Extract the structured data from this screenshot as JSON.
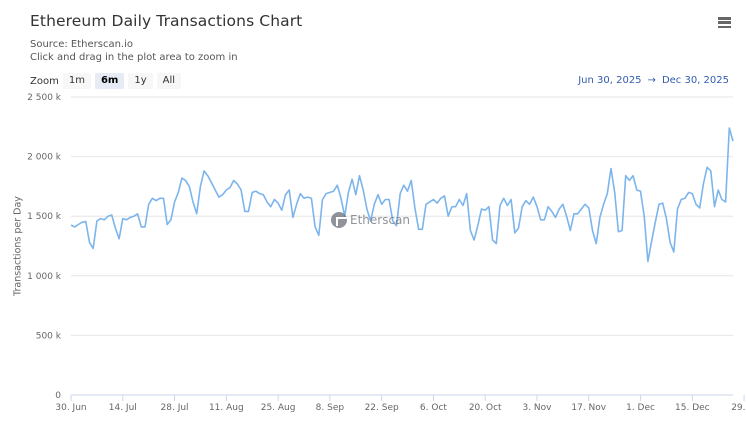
{
  "header": {
    "title": "Ethereum Daily Transactions Chart",
    "source": "Source: Etherscan.io",
    "hint": "Click and drag in the plot area to zoom in",
    "menu_icon": "hamburger-menu-icon"
  },
  "zoom": {
    "label": "Zoom",
    "buttons": [
      {
        "label": "1m",
        "active": false
      },
      {
        "label": "6m",
        "active": true
      },
      {
        "label": "1y",
        "active": false
      },
      {
        "label": "All",
        "active": false
      }
    ]
  },
  "range": {
    "from": "Jun 30, 2025",
    "arrow": "→",
    "to": "Dec 30, 2025"
  },
  "watermark": {
    "text": "Etherscan"
  },
  "colors": {
    "line": "#7cb5ec",
    "grid": "#e6e6e6",
    "axis": "#ccd6eb",
    "range_text": "#335cad"
  },
  "chart_data": {
    "type": "line",
    "title": "Ethereum Daily Transactions Chart",
    "subtitle": "Source: Etherscan.io",
    "xlabel": "",
    "ylabel": "Transactions per Day",
    "ylim": [
      0,
      2500000
    ],
    "y_ticks": [
      "0",
      "500 k",
      "1 000 k",
      "1 500 k",
      "2 000 k",
      "2 500 k"
    ],
    "y_tick_values": [
      0,
      500000,
      1000000,
      1500000,
      2000000,
      2500000
    ],
    "x_ticks": [
      "30. Jun",
      "14. Jul",
      "28. Jul",
      "11. Aug",
      "25. Aug",
      "8. Sep",
      "22. Sep",
      "6. Oct",
      "20. Oct",
      "3. Nov",
      "17. Nov",
      "1. Dec",
      "15. Dec",
      "29. ..."
    ],
    "x_start": "2025-06-30",
    "x_end": "2025-12-30",
    "grid": true,
    "legend": false,
    "series": [
      {
        "name": "Transactions per Day",
        "unit": "k",
        "values": [
          1425,
          1410,
          1430,
          1450,
          1455,
          1280,
          1230,
          1460,
          1480,
          1470,
          1500,
          1510,
          1400,
          1310,
          1480,
          1470,
          1490,
          1500,
          1520,
          1410,
          1410,
          1600,
          1650,
          1630,
          1650,
          1650,
          1430,
          1470,
          1620,
          1700,
          1820,
          1800,
          1750,
          1620,
          1520,
          1750,
          1880,
          1840,
          1780,
          1720,
          1660,
          1680,
          1720,
          1740,
          1800,
          1770,
          1720,
          1540,
          1540,
          1700,
          1710,
          1690,
          1680,
          1620,
          1580,
          1640,
          1610,
          1550,
          1680,
          1720,
          1490,
          1600,
          1690,
          1650,
          1660,
          1650,
          1410,
          1340,
          1640,
          1690,
          1700,
          1710,
          1760,
          1650,
          1500,
          1700,
          1810,
          1680,
          1840,
          1720,
          1560,
          1460,
          1600,
          1680,
          1600,
          1640,
          1640,
          1460,
          1420,
          1690,
          1760,
          1710,
          1800,
          1570,
          1390,
          1390,
          1600,
          1620,
          1640,
          1610,
          1650,
          1670,
          1500,
          1580,
          1580,
          1640,
          1590,
          1690,
          1380,
          1300,
          1420,
          1560,
          1550,
          1580,
          1300,
          1270,
          1590,
          1650,
          1590,
          1640,
          1360,
          1400,
          1580,
          1630,
          1600,
          1660,
          1580,
          1470,
          1470,
          1580,
          1540,
          1490,
          1560,
          1600,
          1500,
          1380,
          1520,
          1520,
          1560,
          1600,
          1570,
          1380,
          1270,
          1490,
          1600,
          1690,
          1900,
          1700,
          1370,
          1380,
          1840,
          1800,
          1840,
          1720,
          1710,
          1500,
          1120,
          1290,
          1450,
          1600,
          1610,
          1480,
          1280,
          1200,
          1560,
          1640,
          1650,
          1700,
          1690,
          1600,
          1570,
          1770,
          1910,
          1880,
          1580,
          1720,
          1640,
          1620,
          2240,
          2130
        ]
      }
    ]
  }
}
